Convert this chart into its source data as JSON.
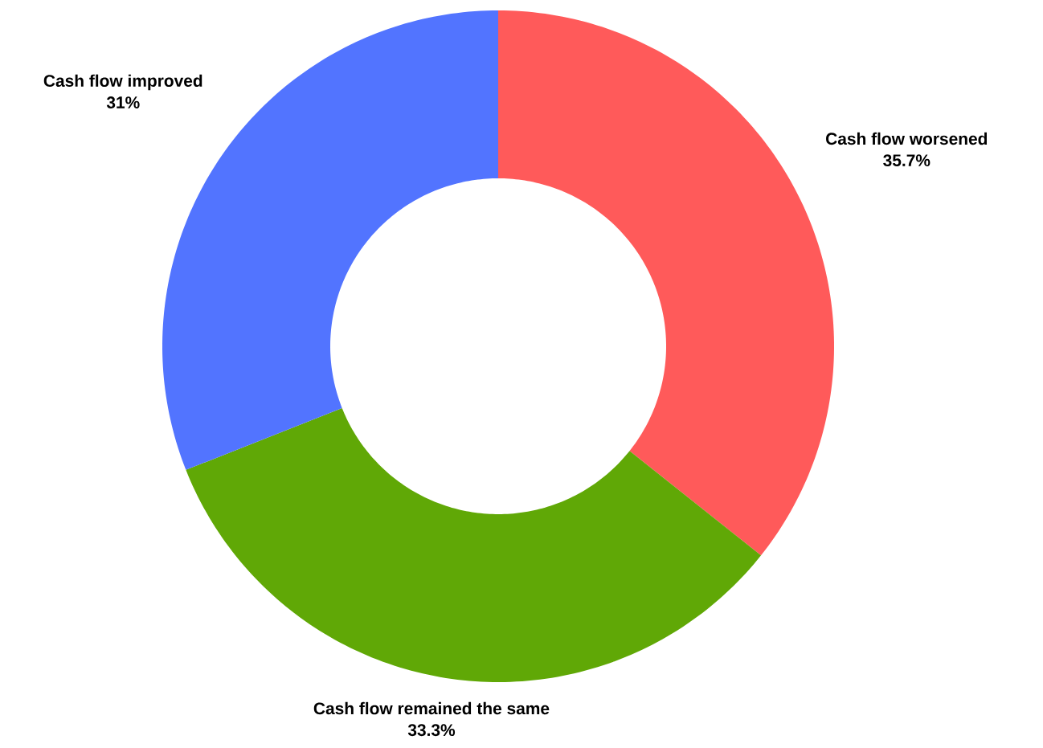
{
  "chart_data": {
    "type": "donut",
    "categories": [
      "Cash flow worsened",
      "Cash flow remained the same",
      "Cash flow improved"
    ],
    "values": [
      35.7,
      33.3,
      31
    ],
    "value_labels": [
      "35.7%",
      "33.3%",
      "31%"
    ],
    "colors": [
      "#ff5a5a",
      "#60a806",
      "#5274ff"
    ]
  }
}
